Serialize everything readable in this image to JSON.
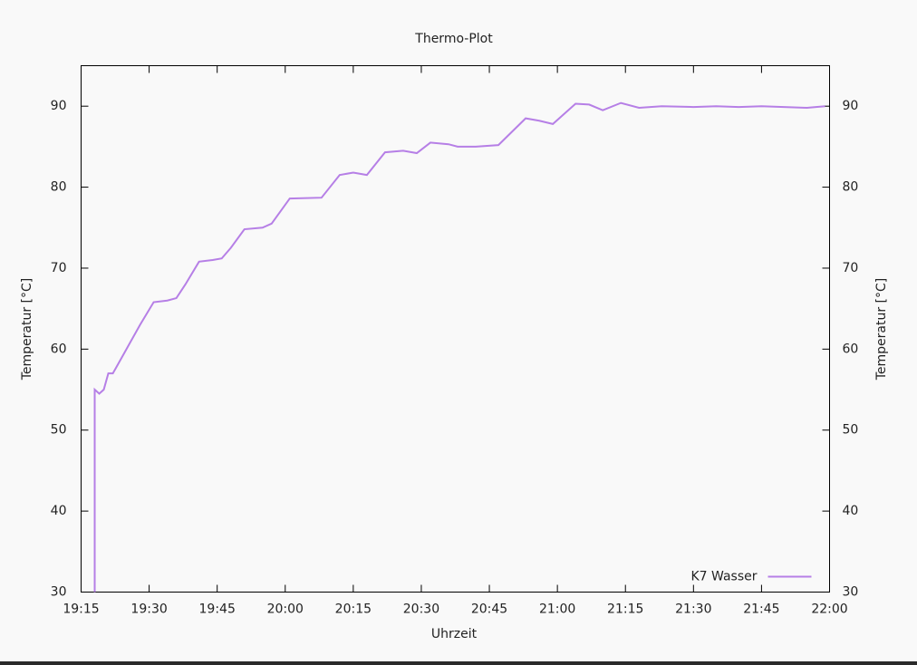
{
  "chart_data": {
    "type": "line",
    "title": "Thermo-Plot",
    "xlabel": "Uhrzeit",
    "ylabel": "Temperatur [°C]",
    "y2label": "Temperatur [°C]",
    "x": [
      "19:18",
      "19:18",
      "19:19",
      "19:20",
      "19:21",
      "19:22",
      "19:25",
      "19:28",
      "19:31",
      "19:34",
      "19:36",
      "19:38",
      "19:41",
      "19:44",
      "19:46",
      "19:48",
      "19:51",
      "19:55",
      "19:57",
      "20:01",
      "20:08",
      "20:12",
      "20:15",
      "20:18",
      "20:22",
      "20:26",
      "20:29",
      "20:32",
      "20:36",
      "20:38",
      "20:42",
      "20:47",
      "20:53",
      "20:56",
      "20:59",
      "21:04",
      "21:07",
      "21:10",
      "21:14",
      "21:18",
      "21:23",
      "21:30",
      "21:35",
      "21:40",
      "21:45",
      "21:55",
      "21:59"
    ],
    "series": [
      {
        "name": "K7 Wasser",
        "color": "#b67fe6",
        "values": [
          30,
          55,
          54.5,
          55,
          57,
          57,
          60,
          63,
          65.8,
          66,
          66.3,
          68,
          70.8,
          71,
          71.2,
          72.5,
          74.8,
          75,
          75.5,
          78.6,
          78.7,
          81.5,
          81.8,
          81.5,
          84.3,
          84.5,
          84.2,
          85.5,
          85.3,
          85,
          85,
          85.2,
          88.5,
          88.2,
          87.8,
          90.3,
          90.2,
          89.5,
          90.4,
          89.8,
          90,
          89.9,
          90,
          89.9,
          90,
          89.8,
          90
        ]
      }
    ],
    "xlim": [
      "19:15",
      "22:00"
    ],
    "xticks": [
      {
        "value": "19:15",
        "label": "19:15"
      },
      {
        "value": "19:30",
        "label": "19:30"
      },
      {
        "value": "19:45",
        "label": "19:45"
      },
      {
        "value": "20:00",
        "label": "20:00"
      },
      {
        "value": "20:15",
        "label": "20:15"
      },
      {
        "value": "20:30",
        "label": "20:30"
      },
      {
        "value": "20:45",
        "label": "20:45"
      },
      {
        "value": "21:00",
        "label": "21:00"
      },
      {
        "value": "21:15",
        "label": "21:15"
      },
      {
        "value": "21:30",
        "label": "21:30"
      },
      {
        "value": "21:45",
        "label": "21:45"
      },
      {
        "value": "22:00",
        "label": "22:00"
      }
    ],
    "ylim": [
      30,
      95
    ],
    "yticks": [
      30,
      40,
      50,
      60,
      70,
      80,
      90
    ],
    "y2lim": [
      30,
      95
    ],
    "y2ticks": [
      30,
      40,
      50,
      60,
      70,
      80,
      90
    ],
    "legend": "bottom-right",
    "grid": false
  }
}
